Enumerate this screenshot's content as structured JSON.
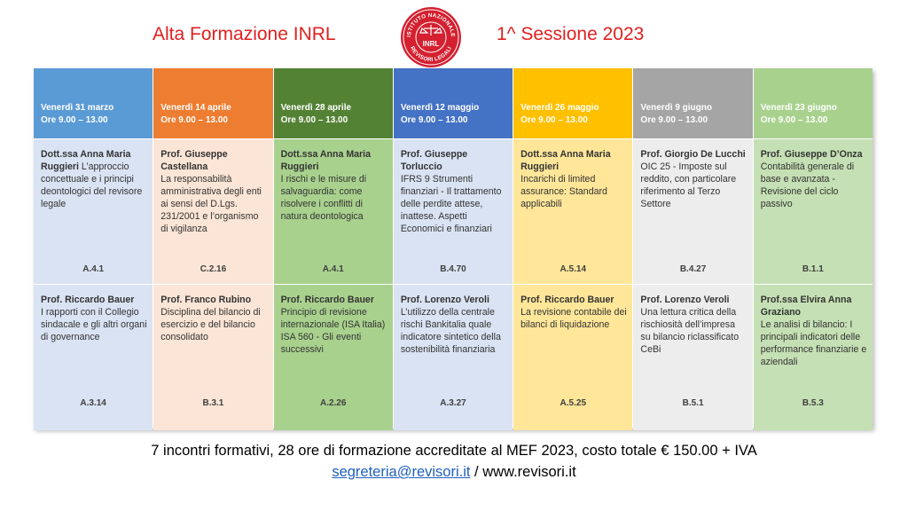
{
  "header": {
    "title_left": "Alta Formazione INRL",
    "title_right": "1^ Sessione 2023"
  },
  "seal": {
    "text_top": "ISTITUTO NAZIONALE",
    "text_bottom": "REVISORI LEGALI",
    "center": "INRL",
    "color": "#d42030"
  },
  "colors": {
    "header": [
      "#5b9bd5",
      "#ed7d31",
      "#548235",
      "#4472c4",
      "#ffc000",
      "#a5a5a5",
      "#a9d18e"
    ],
    "body": [
      "#dae3f3",
      "#fbe5d6",
      "#a9d18e",
      "#dae3f3",
      "#ffe699",
      "#ededed",
      "#c5e0b4"
    ]
  },
  "columns": [
    {
      "date": "Venerdì 31 marzo",
      "time": "Ore 9.00 – 13.00",
      "s1": {
        "name": "Dott.ssa Anna Maria Ruggieri",
        "desc": " L’approccio concettuale e i principi deontologici del revisore legale",
        "code": "A.4.1"
      },
      "s2": {
        "name": "Prof. Riccardo Bauer",
        "desc": "I rapporti con il Collegio sindacale e gli altri organi di governance",
        "code": "A.3.14"
      }
    },
    {
      "date": "Venerdì 14 aprile",
      "time": "Ore 9.00 – 13.00",
      "s1": {
        "name": "Prof. Giuseppe Castellana",
        "desc": "La responsabilità amministrativa degli enti ai sensi del D.Lgs. 231/2001 e l’organismo di vigilanza",
        "code": "C.2.16"
      },
      "s2": {
        "name": "Prof. Franco Rubino",
        "desc": "Disciplina del bilancio di esercizio e del bilancio consolidato",
        "code": "B.3.1"
      }
    },
    {
      "date": "Venerdì 28 aprile",
      "time": "Ore 9.00 – 13.00",
      "s1": {
        "name": "Dott.ssa Anna Maria Ruggieri",
        "desc": "I rischi e le misure di salvaguardia: come risolvere i conflitti di natura deontologica",
        "code": "A.4.1"
      },
      "s2": {
        "name": "Prof. Riccardo Bauer",
        "desc": "Principio di revisione internazionale (ISA Italia) ISA 560 - Gli eventi successivi",
        "code": "A.2.26"
      }
    },
    {
      "date": "Venerdì 12 maggio",
      "time": "Ore 9.00 – 13.00",
      "s1": {
        "name": "Prof. Giuseppe Torluccio",
        "desc": "IFRS 9 Strumenti finanziari - Il trattamento delle perdite attese, inattese. Aspetti Economici e finanziari",
        "code": "B.4.70"
      },
      "s2": {
        "name": "Prof. Lorenzo Veroli",
        "desc": "L’utilizzo della centrale rischi Bankitalia quale indicatore sintetico della sostenibilità finanziaria",
        "code": "A.3.27"
      }
    },
    {
      "date": "Venerdì 26 maggio",
      "time": "Ore 9.00 – 13.00",
      "s1": {
        "name": "Dott.ssa Anna Maria Ruggieri",
        "desc": "Incarichi di limited assurance: Standard applicabili",
        "code": "A.5.14"
      },
      "s2": {
        "name": "Prof. Riccardo Bauer",
        "desc": "La revisione contabile dei bilanci di liquidazione",
        "code": "A.5.25"
      }
    },
    {
      "date": "Venerdì 9 giugno",
      "time": "Ore 9.00 – 13.00",
      "s1": {
        "name": "Prof. Giorgio De Lucchi",
        "desc": "OIC 25 - Imposte sul reddito, con particolare riferimento al Terzo Settore",
        "code": "B.4.27"
      },
      "s2": {
        "name": "Prof. Lorenzo Veroli",
        "desc": "Una lettura critica della rischiosità dell’impresa su bilancio riclassificato CeBi",
        "code": "B.5.1"
      }
    },
    {
      "date": "Venerdì 23 giugno",
      "time": "Ore 9.00 – 13.00",
      "s1": {
        "name": "Prof. Giuseppe D’Onza",
        "desc": "Contabilità generale di base e avanzata - Revisione del ciclo passivo",
        "code": "B.1.1"
      },
      "s2": {
        "name": "Prof.ssa Elvira Anna Graziano",
        "desc": "Le analisi di bilancio: I principali indicatori delle performance finanziarie e aziendali",
        "code": "B.5.3"
      }
    }
  ],
  "footer": {
    "line1": "7 incontri formativi, 28 ore di formazione accreditate al MEF 2023, costo totale € 150.00 + IVA",
    "email": "segreteria@revisori.it",
    "separator": " / ",
    "website": "www.revisori.it"
  }
}
